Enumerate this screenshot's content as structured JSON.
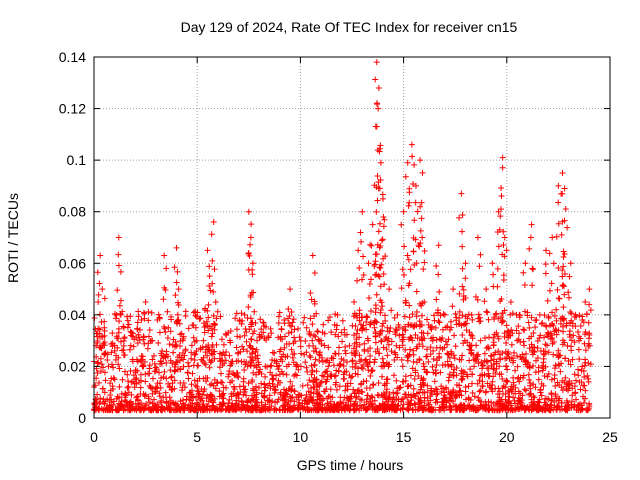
{
  "chart_data": {
    "type": "scatter",
    "title": "Day 129 of 2024, Rate Of TEC Index for receiver cn15",
    "xlabel": "GPS time / hours",
    "ylabel": "ROTI / TECUs",
    "xlim": [
      0,
      25
    ],
    "ylim": [
      0,
      0.14
    ],
    "xticks": [
      0,
      5,
      10,
      15,
      20,
      25
    ],
    "yticks": [
      0,
      0.02,
      0.04,
      0.06,
      0.08,
      0.1,
      0.12,
      0.14
    ],
    "xtick_labels": [
      "0",
      "5",
      "10",
      "15",
      "20",
      "25"
    ],
    "ytick_labels": [
      "0",
      "0.02",
      "0.04",
      "0.06",
      "0.08",
      "0.1",
      "0.12",
      "0.14"
    ],
    "grid": true,
    "marker": "+",
    "color": "#ff0000",
    "series": [
      {
        "name": "ROTI",
        "x": [
          0.0,
          0.1,
          0.2,
          0.3,
          0.4,
          0.5,
          0.7,
          1.0,
          1.2,
          1.3,
          1.5,
          1.8,
          2.0,
          2.3,
          2.5,
          2.8,
          3.0,
          3.2,
          3.4,
          3.6,
          3.9,
          4.0,
          4.1,
          4.3,
          4.6,
          5.0,
          5.3,
          5.5,
          5.6,
          5.8,
          5.9,
          6.1,
          6.5,
          6.9,
          7.3,
          7.5,
          7.6,
          7.7,
          7.9,
          8.3,
          8.7,
          9.1,
          9.5,
          9.8,
          10.3,
          10.6,
          11.0,
          11.3,
          11.8,
          12.2,
          12.6,
          12.8,
          13.0,
          13.3,
          13.5,
          13.7,
          13.8,
          13.9,
          14.0,
          14.3,
          14.7,
          15.0,
          15.2,
          15.4,
          15.6,
          15.8,
          15.9,
          16.0,
          16.3,
          16.7,
          17.0,
          17.4,
          17.8,
          18.0,
          18.3,
          18.6,
          19.0,
          19.3,
          19.6,
          19.8,
          19.9,
          20.2,
          20.5,
          20.9,
          21.2,
          21.6,
          21.9,
          22.2,
          22.5,
          22.7,
          22.8,
          23.1,
          23.5,
          23.8,
          24.0
        ],
        "y": [
          0.012,
          0.028,
          0.045,
          0.063,
          0.05,
          0.035,
          0.02,
          0.015,
          0.07,
          0.04,
          0.018,
          0.032,
          0.015,
          0.024,
          0.045,
          0.03,
          0.012,
          0.021,
          0.063,
          0.035,
          0.018,
          0.066,
          0.05,
          0.03,
          0.02,
          0.012,
          0.03,
          0.065,
          0.055,
          0.076,
          0.045,
          0.025,
          0.016,
          0.022,
          0.04,
          0.08,
          0.07,
          0.06,
          0.03,
          0.02,
          0.015,
          0.018,
          0.05,
          0.02,
          0.035,
          0.063,
          0.03,
          0.015,
          0.04,
          0.025,
          0.045,
          0.065,
          0.08,
          0.06,
          0.075,
          0.138,
          0.128,
          0.099,
          0.085,
          0.05,
          0.04,
          0.08,
          0.099,
          0.106,
          0.09,
          0.1,
          0.07,
          0.045,
          0.035,
          0.067,
          0.04,
          0.05,
          0.087,
          0.06,
          0.04,
          0.07,
          0.05,
          0.06,
          0.08,
          0.101,
          0.07,
          0.045,
          0.03,
          0.06,
          0.075,
          0.04,
          0.065,
          0.07,
          0.09,
          0.095,
          0.089,
          0.06,
          0.03,
          0.045,
          0.05
        ]
      }
    ],
    "noise_band": {
      "description": "dense background cloud of low ROTI values across the full day",
      "x_start": 0.0,
      "x_end": 24.0,
      "y_typical_min": 0.003,
      "y_typical_max": 0.035
    }
  }
}
